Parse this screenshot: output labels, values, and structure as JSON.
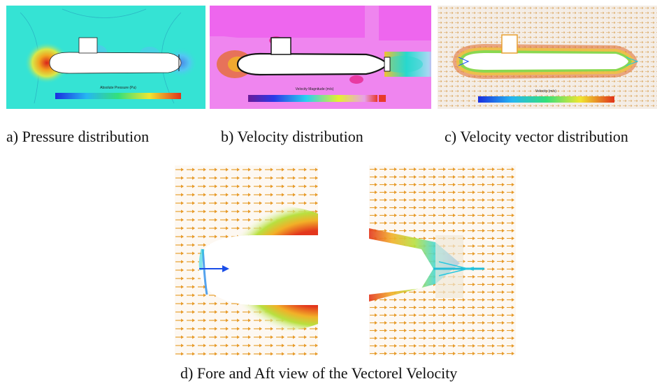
{
  "figure": {
    "panels": [
      {
        "id": "a",
        "caption": "a)  Pressure distribution",
        "background": "#35e3d4",
        "legend_title": "Absolute Pressure (Pa)"
      },
      {
        "id": "b",
        "caption": "b) Velocity distribution",
        "background": "#ee66ee",
        "legend_title": "Velocity Magnitude (m/s)"
      },
      {
        "id": "c",
        "caption": "c) Velocity vector distribution",
        "background": "#f4ede6",
        "legend_title": "Velocity (m/s)"
      }
    ],
    "detail_caption": "d) Fore and Aft view of the Vectorel Velocity",
    "colors": {
      "hull": "#ffffff",
      "vector_field": "#e79a2a",
      "high": "#e53a1f",
      "low": "#2a5cf5"
    }
  }
}
